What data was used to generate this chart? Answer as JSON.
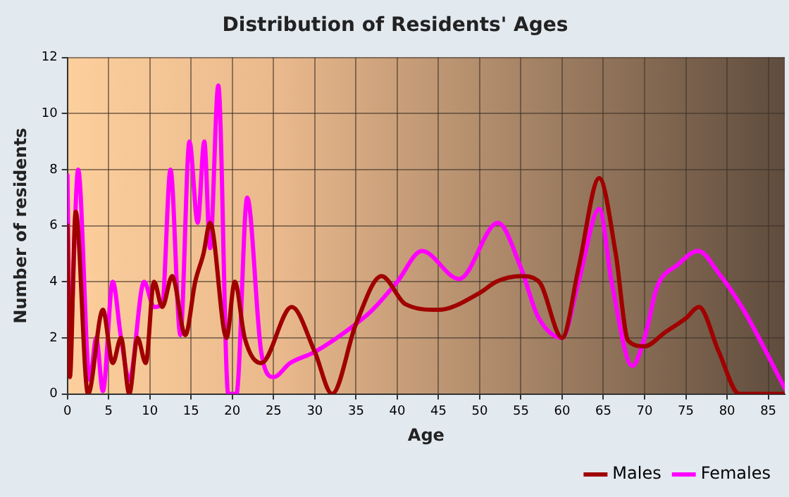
{
  "chart_data": {
    "type": "line",
    "title": "Distribution of Residents' Ages",
    "xlabel": "Age",
    "ylabel": "Number of residents",
    "xlim": [
      0,
      87
    ],
    "xticks": [
      0,
      5,
      10,
      15,
      20,
      25,
      30,
      35,
      40,
      45,
      50,
      55,
      60,
      65,
      70,
      75,
      80,
      85
    ],
    "ylim": [
      0,
      12
    ],
    "yticks": [
      0,
      2,
      4,
      6,
      8,
      10,
      12
    ],
    "grid": true,
    "legend": "bottom right",
    "marker": "none",
    "line_style": "solid",
    "series": [
      {
        "name": "Males",
        "color": "#a00000",
        "x": [
          0,
          0.3,
          1,
          2.5,
          4.3,
          5.5,
          6.5,
          7.5,
          8.5,
          9.5,
          10.5,
          11.5,
          12.7,
          14.3,
          15.5,
          16.5,
          17.3,
          19.3,
          20.3,
          21.5,
          23.5,
          27.2,
          30,
          32.1,
          35,
          38.1,
          41,
          45,
          50,
          52,
          55,
          57.2,
          60,
          62,
          64.5,
          66.5,
          68,
          70,
          72.5,
          75,
          76.6,
          79,
          81.5,
          87
        ],
        "values": [
          6,
          0.6,
          6.5,
          0,
          3,
          1.1,
          2,
          0,
          2,
          1.1,
          4,
          3.1,
          4.2,
          2.1,
          4,
          5,
          6.1,
          2,
          4,
          2,
          1.1,
          3.1,
          1.5,
          0,
          2.5,
          4.2,
          3.2,
          3,
          3.6,
          4,
          4.2,
          4,
          2,
          4.5,
          7.7,
          5,
          1.9,
          1.7,
          2.2,
          2.7,
          3.1,
          1.5,
          0,
          0
        ]
      },
      {
        "name": "Females",
        "color": "#ff00ff",
        "x": [
          0,
          0.3,
          1.3,
          2.7,
          3.5,
          4.3,
          5.5,
          6.5,
          7.5,
          9.3,
          10.5,
          11.5,
          12.5,
          13.7,
          14.8,
          15.8,
          16.6,
          17.3,
          18.3,
          19.5,
          20.5,
          21.8,
          23.5,
          25,
          27,
          30,
          35,
          37,
          40,
          43,
          47.5,
          52.2,
          55,
          57,
          60,
          62,
          64.5,
          66,
          68.5,
          70,
          71.5,
          74,
          76.5,
          79,
          82,
          87
        ],
        "values": [
          7.8,
          1.9,
          8,
          0.5,
          2,
          0.1,
          4,
          2,
          0.5,
          4,
          3.1,
          3.2,
          8,
          2.1,
          9,
          6.1,
          9,
          5.2,
          11,
          0,
          0,
          7,
          1.5,
          0.6,
          1.1,
          1.5,
          2.5,
          3,
          4,
          5.1,
          4.1,
          6.1,
          4.5,
          2.8,
          2,
          4,
          6.6,
          4,
          1,
          2,
          3.8,
          4.6,
          5.1,
          4.3,
          3,
          0.2
        ]
      }
    ]
  }
}
